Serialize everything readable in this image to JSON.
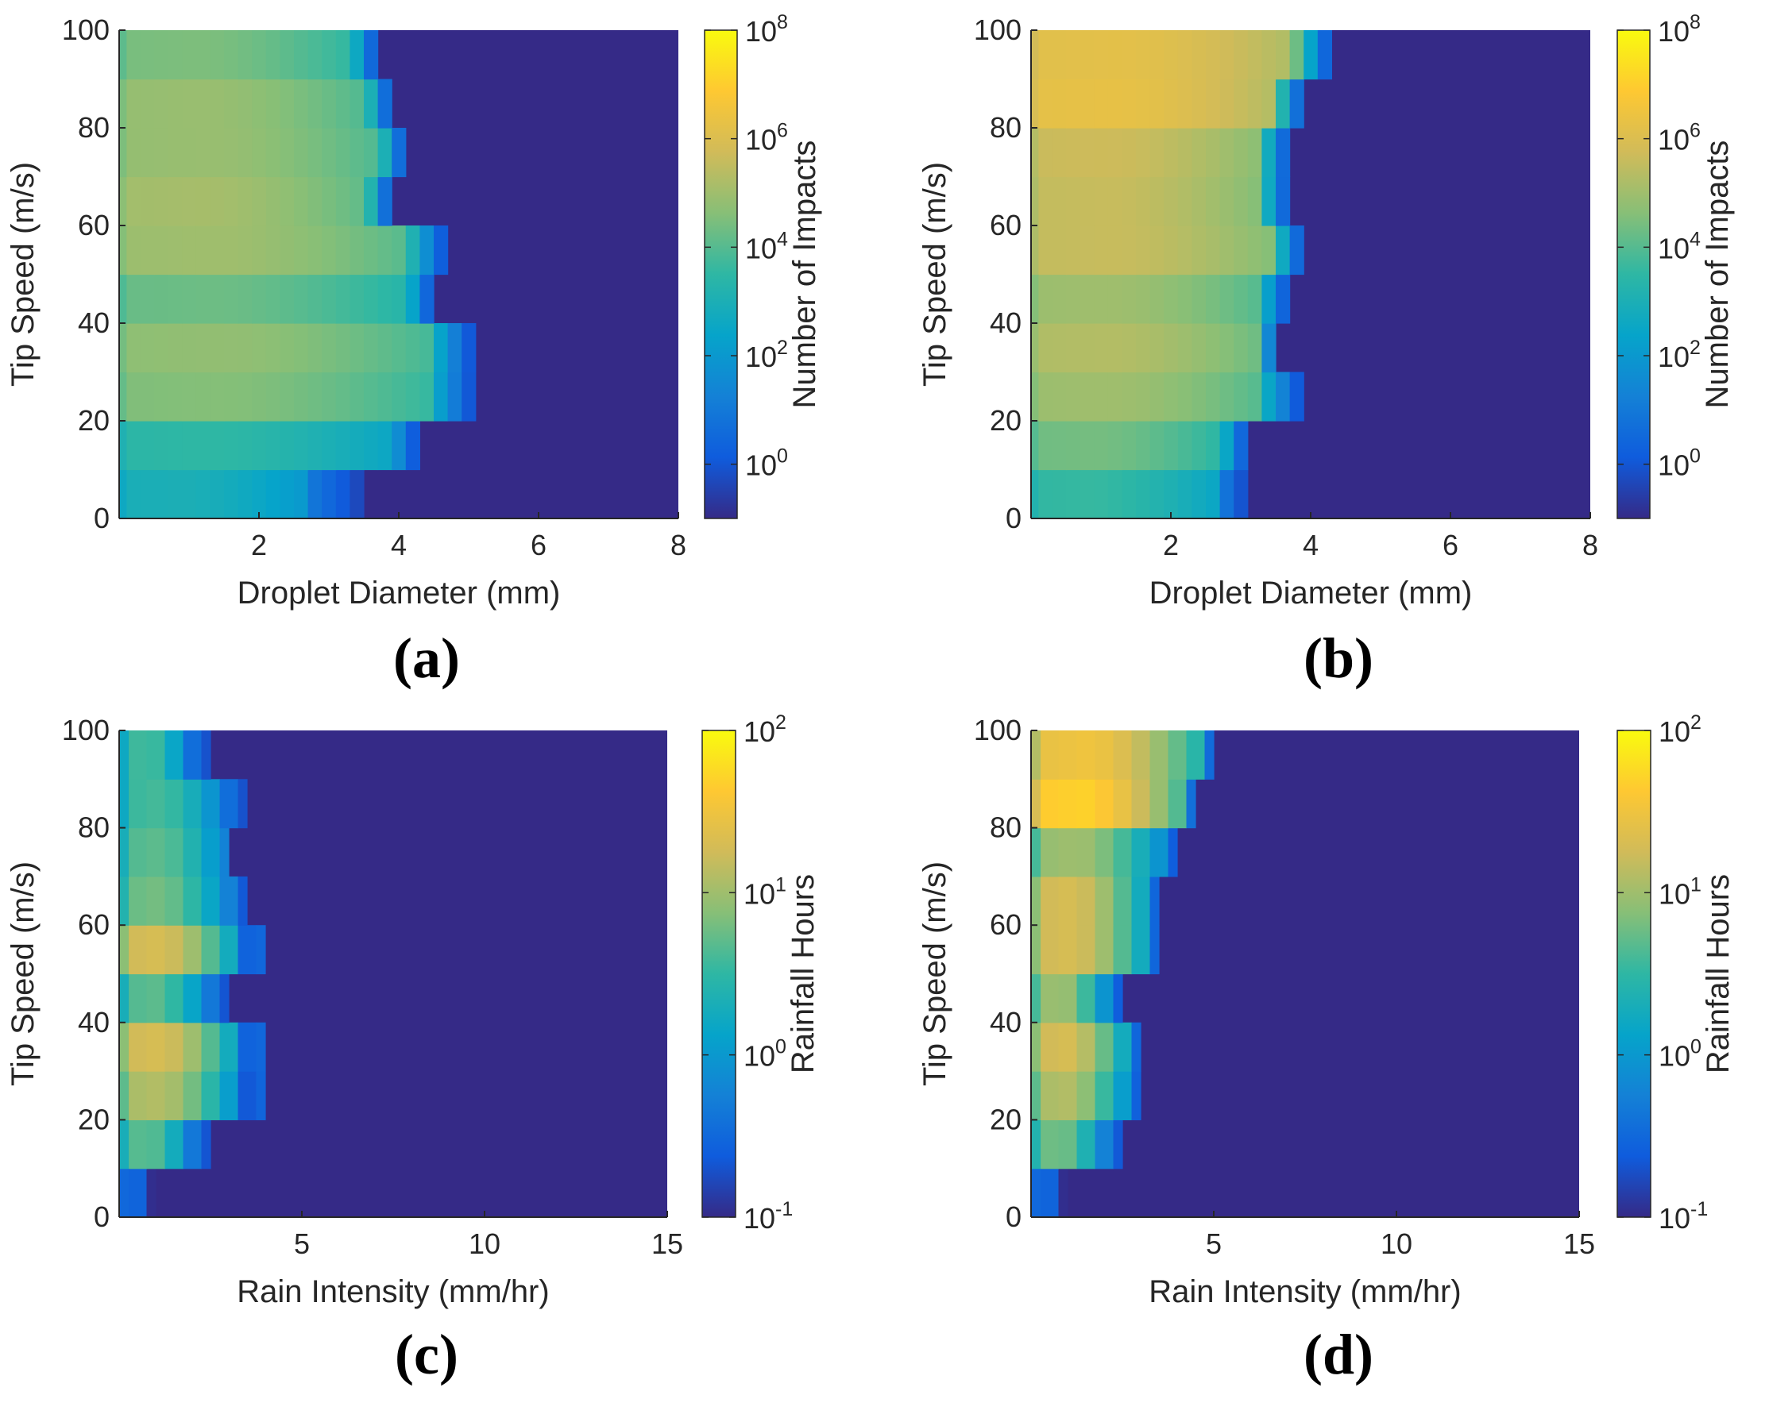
{
  "colors": {
    "parula": [
      "#352a87",
      "#0f5cdd",
      "#1481d6",
      "#06a4ca",
      "#2eb7a4",
      "#87bf77",
      "#d1bb59",
      "#fec832",
      "#f9fb0e"
    ]
  },
  "chart_data": [
    {
      "type": "heatmap",
      "panel_label": "(a)",
      "xlabel": "Droplet Diameter (mm)",
      "ylabel": "Tip Speed (m/s)",
      "colorbar_label": "Number of Impacts",
      "xlim": [
        0,
        8
      ],
      "ylim": [
        0,
        100
      ],
      "xticks": [
        "2",
        "4",
        "6",
        "8"
      ],
      "yticks": [
        "0",
        "20",
        "40",
        "60",
        "80",
        "100"
      ],
      "colorbar_scale": "log",
      "colorbar_range_log10": [
        -1,
        8
      ],
      "colorbar_ticks": [
        {
          "base": "10",
          "exp": "0"
        },
        {
          "base": "10",
          "exp": "2"
        },
        {
          "base": "10",
          "exp": "4"
        },
        {
          "base": "10",
          "exp": "6"
        },
        {
          "base": "10",
          "exp": "8"
        }
      ],
      "x_bin_width": 0.2,
      "y_bin_width": 10,
      "rows": [
        {
          "y": 5,
          "start": 2.7,
          "extent": 3.5,
          "peak": 3.0
        },
        {
          "y": 15,
          "start": 4.0,
          "extent": 4.3,
          "peak": 3.5
        },
        {
          "y": 25,
          "start": 4.5,
          "extent": 5.1,
          "peak": 4.6
        },
        {
          "y": 35,
          "start": 4.5,
          "extent": 5.1,
          "peak": 4.8
        },
        {
          "y": 45,
          "start": 4.2,
          "extent": 4.5,
          "peak": 4.3
        },
        {
          "y": 55,
          "start": 4.2,
          "extent": 4.7,
          "peak": 5.0
        },
        {
          "y": 65,
          "start": 3.6,
          "extent": 3.9,
          "peak": 5.1
        },
        {
          "y": 75,
          "start": 3.8,
          "extent": 4.1,
          "peak": 4.9
        },
        {
          "y": 85,
          "start": 3.6,
          "extent": 3.9,
          "peak": 4.9
        },
        {
          "y": 95,
          "start": 3.4,
          "extent": 3.7,
          "peak": 4.5
        }
      ]
    },
    {
      "type": "heatmap",
      "panel_label": "(b)",
      "xlabel": "Droplet Diameter (mm)",
      "ylabel": "Tip Speed (m/s)",
      "colorbar_label": "Number of Impacts",
      "xlim": [
        0,
        8
      ],
      "ylim": [
        0,
        100
      ],
      "xticks": [
        "2",
        "4",
        "6",
        "8"
      ],
      "yticks": [
        "0",
        "20",
        "40",
        "60",
        "80",
        "100"
      ],
      "colorbar_scale": "log",
      "colorbar_range_log10": [
        -1,
        8
      ],
      "colorbar_ticks": [
        {
          "base": "10",
          "exp": "0"
        },
        {
          "base": "10",
          "exp": "2"
        },
        {
          "base": "10",
          "exp": "4"
        },
        {
          "base": "10",
          "exp": "6"
        },
        {
          "base": "10",
          "exp": "8"
        }
      ],
      "x_bin_width": 0.2,
      "y_bin_width": 10,
      "rows": [
        {
          "y": 5,
          "start": 2.6,
          "extent": 3.1,
          "peak": 3.6
        },
        {
          "y": 15,
          "start": 2.8,
          "extent": 3.1,
          "peak": 4.4
        },
        {
          "y": 25,
          "start": 3.3,
          "extent": 3.9,
          "peak": 5.0
        },
        {
          "y": 35,
          "start": 3.3,
          "extent": 3.5,
          "peak": 5.3
        },
        {
          "y": 45,
          "start": 3.3,
          "extent": 3.7,
          "peak": 5.0
        },
        {
          "y": 55,
          "start": 3.5,
          "extent": 3.9,
          "peak": 5.6
        },
        {
          "y": 65,
          "start": 3.3,
          "extent": 3.7,
          "peak": 5.6
        },
        {
          "y": 75,
          "start": 3.3,
          "extent": 3.7,
          "peak": 5.7
        },
        {
          "y": 85,
          "start": 3.5,
          "extent": 3.9,
          "peak": 6.3
        },
        {
          "y": 95,
          "start": 3.8,
          "extent": 4.3,
          "peak": 6.2
        }
      ]
    },
    {
      "type": "heatmap",
      "panel_label": "(c)",
      "xlabel": "Rain Intensity (mm/hr)",
      "ylabel": "Tip Speed (m/s)",
      "colorbar_label": "Rainfall Hours",
      "xlim": [
        0,
        15
      ],
      "ylim": [
        0,
        100
      ],
      "xticks": [
        "5",
        "10",
        "15"
      ],
      "yticks": [
        "0",
        "20",
        "40",
        "60",
        "80",
        "100"
      ],
      "colorbar_scale": "log",
      "colorbar_range_log10": [
        -1,
        2
      ],
      "colorbar_ticks": [
        {
          "base": "10",
          "exp": "-1"
        },
        {
          "base": "10",
          "exp": "0"
        },
        {
          "base": "10",
          "exp": "1"
        },
        {
          "base": "10",
          "exp": "2"
        }
      ],
      "x_bin_width": 0.5,
      "y_bin_width": 10,
      "rows": [
        {
          "y": 5,
          "start": 0.6,
          "extent": 1.0,
          "peak": -0.1
        },
        {
          "y": 15,
          "start": 2.0,
          "extent": 2.5,
          "peak": 0.7
        },
        {
          "y": 25,
          "start": 3.0,
          "extent": 4.0,
          "peak": 1.1
        },
        {
          "y": 35,
          "start": 3.0,
          "extent": 4.0,
          "peak": 1.3
        },
        {
          "y": 45,
          "start": 2.5,
          "extent": 3.0,
          "peak": 0.7
        },
        {
          "y": 55,
          "start": 3.0,
          "extent": 4.0,
          "peak": 1.3
        },
        {
          "y": 65,
          "start": 3.0,
          "extent": 3.5,
          "peak": 0.8
        },
        {
          "y": 75,
          "start": 3.0,
          "extent": 3.0,
          "peak": 0.7
        },
        {
          "y": 85,
          "start": 3.0,
          "extent": 3.5,
          "peak": 0.6
        },
        {
          "y": 95,
          "start": 2.0,
          "extent": 2.5,
          "peak": 0.6
        }
      ]
    },
    {
      "type": "heatmap",
      "panel_label": "(d)",
      "xlabel": "Rain Intensity (mm/hr)",
      "ylabel": "Tip Speed (m/s)",
      "colorbar_label": "Rainfall Hours",
      "xlim": [
        0,
        15
      ],
      "ylim": [
        0,
        100
      ],
      "xticks": [
        "5",
        "10",
        "15"
      ],
      "yticks": [
        "0",
        "20",
        "40",
        "60",
        "80",
        "100"
      ],
      "colorbar_scale": "log",
      "colorbar_range_log10": [
        -1,
        2
      ],
      "colorbar_ticks": [
        {
          "base": "10",
          "exp": "-1"
        },
        {
          "base": "10",
          "exp": "0"
        },
        {
          "base": "10",
          "exp": "1"
        },
        {
          "base": "10",
          "exp": "2"
        }
      ],
      "x_bin_width": 0.5,
      "y_bin_width": 10,
      "rows": [
        {
          "y": 5,
          "start": 0.6,
          "extent": 1.0,
          "peak": -0.1
        },
        {
          "y": 15,
          "start": 2.0,
          "extent": 2.5,
          "peak": 0.8
        },
        {
          "y": 25,
          "start": 2.5,
          "extent": 3.0,
          "peak": 1.1
        },
        {
          "y": 35,
          "start": 2.5,
          "extent": 3.0,
          "peak": 1.3
        },
        {
          "y": 45,
          "start": 2.0,
          "extent": 2.5,
          "peak": 1.0
        },
        {
          "y": 55,
          "start": 3.0,
          "extent": 3.5,
          "peak": 1.3
        },
        {
          "y": 65,
          "start": 3.0,
          "extent": 3.5,
          "peak": 1.3
        },
        {
          "y": 75,
          "start": 3.5,
          "extent": 4.0,
          "peak": 1.0
        },
        {
          "y": 85,
          "start": 4.0,
          "extent": 4.5,
          "peak": 1.7
        },
        {
          "y": 95,
          "start": 4.5,
          "extent": 5.0,
          "peak": 1.5
        }
      ]
    }
  ]
}
